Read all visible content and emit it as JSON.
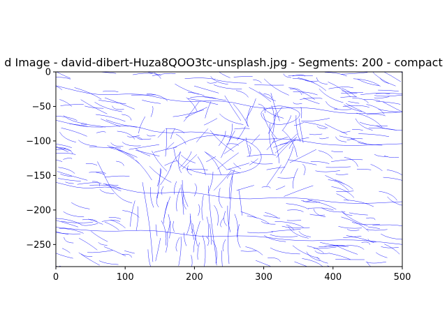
{
  "chart_data": {
    "type": "line",
    "title": "d Image - david-dibert-Huza8QOO3tc-unsplash.jpg - Segments: 200 - compact",
    "xlabel": "",
    "ylabel": "",
    "xlim": [
      0,
      500
    ],
    "ylim": [
      -282,
      0
    ],
    "x_ticks": [
      0,
      100,
      200,
      300,
      400,
      500
    ],
    "y_ticks": [
      0,
      -50,
      -100,
      -150,
      -200,
      -250
    ],
    "x_tick_labels": [
      "0",
      "100",
      "200",
      "300",
      "400",
      "500"
    ],
    "y_tick_labels": [
      "0",
      "−50",
      "−100",
      "−150",
      "−200",
      "−250"
    ],
    "grid": false,
    "line_color": "#0000ff",
    "segments": 200,
    "series": [
      {
        "values": [
          [
            0,
            -20
          ],
          [
            60,
            -35
          ],
          [
            120,
            -30
          ],
          [
            180,
            -45
          ],
          [
            240,
            -40
          ],
          [
            300,
            -55
          ],
          [
            360,
            -50
          ],
          [
            420,
            -62
          ],
          [
            500,
            -58
          ]
        ]
      },
      {
        "values": [
          [
            0,
            -70
          ],
          [
            50,
            -82
          ],
          [
            110,
            -76
          ],
          [
            150,
            -90
          ],
          [
            210,
            -85
          ],
          [
            270,
            -100
          ],
          [
            330,
            -95
          ],
          [
            400,
            -108
          ],
          [
            500,
            -104
          ]
        ]
      },
      {
        "values": [
          [
            0,
            -160
          ],
          [
            40,
            -170
          ],
          [
            80,
            -165
          ],
          [
            130,
            -178
          ],
          [
            190,
            -172
          ],
          [
            260,
            -186
          ],
          [
            340,
            -180
          ],
          [
            420,
            -192
          ],
          [
            500,
            -188
          ]
        ]
      },
      {
        "values": [
          [
            0,
            -225
          ],
          [
            70,
            -232
          ],
          [
            140,
            -228
          ],
          [
            210,
            -240
          ],
          [
            280,
            -236
          ],
          [
            350,
            -246
          ],
          [
            430,
            -242
          ],
          [
            500,
            -250
          ]
        ]
      },
      {
        "values": [
          [
            300,
            -55
          ],
          [
            320,
            -48
          ],
          [
            340,
            -52
          ],
          [
            355,
            -60
          ],
          [
            345,
            -72
          ],
          [
            320,
            -78
          ],
          [
            300,
            -70
          ],
          [
            295,
            -60
          ],
          [
            300,
            -55
          ]
        ]
      },
      {
        "values": [
          [
            170,
            -110
          ],
          [
            200,
            -95
          ],
          [
            240,
            -90
          ],
          [
            280,
            -100
          ],
          [
            300,
            -120
          ],
          [
            290,
            -140
          ],
          [
            250,
            -150
          ],
          [
            210,
            -148
          ],
          [
            175,
            -135
          ],
          [
            170,
            -110
          ]
        ]
      },
      {
        "values": [
          [
            125,
            -160
          ],
          [
            130,
            -190
          ],
          [
            135,
            -220
          ],
          [
            138,
            -250
          ],
          [
            140,
            -275
          ]
        ]
      },
      {
        "values": [
          [
            220,
            -165
          ],
          [
            222,
            -195
          ],
          [
            226,
            -230
          ],
          [
            230,
            -260
          ],
          [
            232,
            -280
          ]
        ]
      },
      {
        "values": [
          [
            255,
            -150
          ],
          [
            252,
            -185
          ],
          [
            250,
            -215
          ],
          [
            248,
            -250
          ],
          [
            250,
            -278
          ]
        ]
      },
      {
        "values": [
          [
            60,
            -130
          ],
          [
            70,
            -150
          ],
          [
            80,
            -170
          ],
          [
            95,
            -185
          ],
          [
            110,
            -190
          ]
        ]
      }
    ]
  }
}
